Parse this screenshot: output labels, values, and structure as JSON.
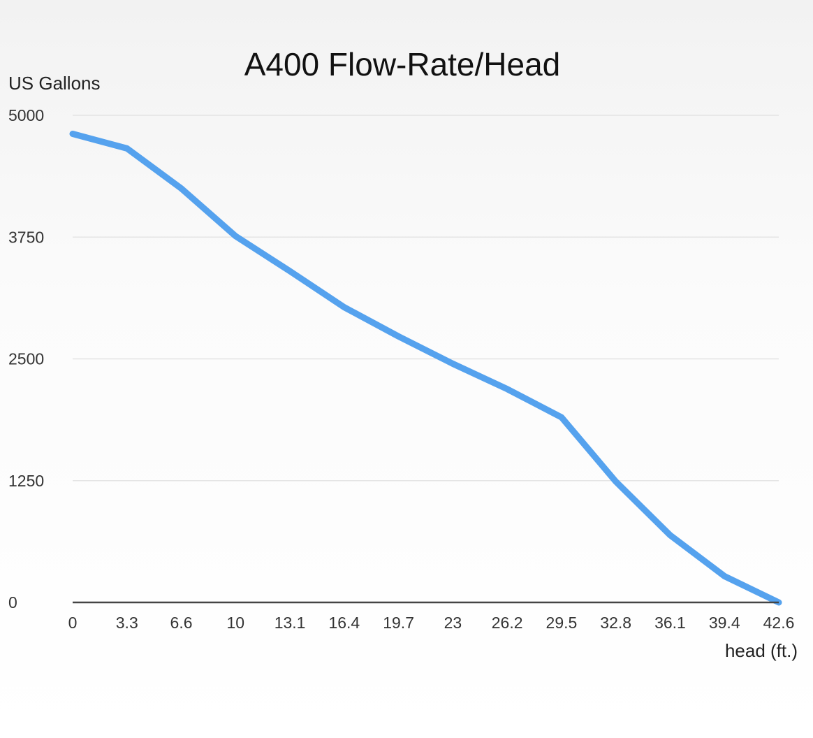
{
  "chart_data": {
    "type": "line",
    "title": "A400 Flow-Rate/Head",
    "xlabel": "head (ft.)",
    "ylabel": "US Gallons",
    "categories": [
      "0",
      "3.3",
      "6.6",
      "10",
      "13.1",
      "16.4",
      "19.7",
      "23",
      "26.2",
      "29.5",
      "32.8",
      "36.1",
      "39.4",
      "42.6"
    ],
    "series": [
      {
        "values": [
          4810,
          4660,
          4250,
          3760,
          3400,
          3030,
          2730,
          2450,
          2190,
          1900,
          1240,
          690,
          270,
          0
        ],
        "color": "#55a2ee"
      }
    ],
    "yticks": [
      "0",
      "1250",
      "2500",
      "3750",
      "5000"
    ],
    "ylim": [
      0,
      5000
    ],
    "grid": true,
    "legend": "none"
  }
}
